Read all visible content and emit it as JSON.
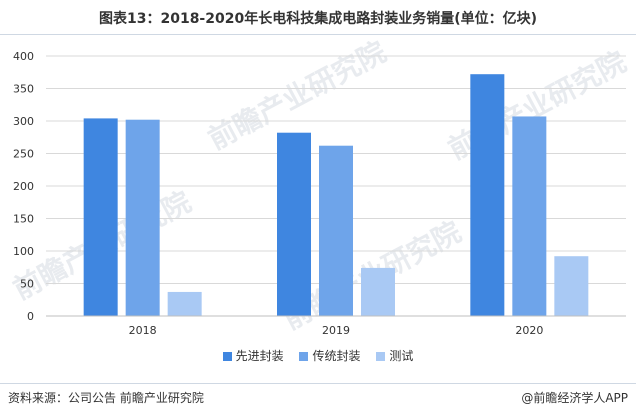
{
  "title": "图表13：2018-2020年长电科技集成电路封装业务销量(单位：亿块)",
  "source": "资料来源：公司公告 前瞻产业研究院",
  "credit": "@前瞻经济学人APP",
  "watermark": "前瞻产业研究院",
  "chart_data": {
    "type": "bar",
    "title": "图表13：2018-2020年长电科技集成电路封装业务销量(单位：亿块)",
    "categories": [
      "2018",
      "2019",
      "2020"
    ],
    "series": [
      {
        "name": "先进封装",
        "values": [
          304,
          282,
          372
        ],
        "color": "#3f86e0"
      },
      {
        "name": "传统封装",
        "values": [
          302,
          262,
          307
        ],
        "color": "#6ea4ea"
      },
      {
        "name": "测试",
        "values": [
          37,
          74,
          92
        ],
        "color": "#a9c9f4"
      }
    ],
    "ylim": [
      0,
      400
    ],
    "yticks": [
      "0",
      "50",
      "100",
      "150",
      "200",
      "250",
      "300",
      "350",
      "400"
    ],
    "grid": true,
    "legend_position": "bottom"
  }
}
